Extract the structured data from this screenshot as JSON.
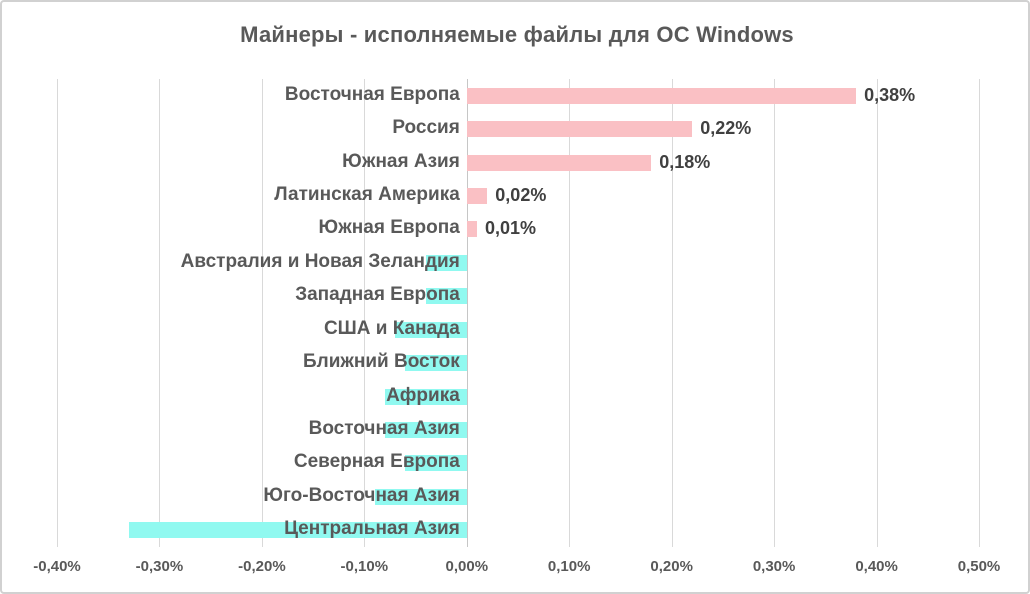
{
  "chart_data": {
    "type": "bar",
    "orientation": "horizontal",
    "title": "Майнеры - исполняемые файлы для ОС Windows",
    "categories": [
      "Восточная Европа",
      "Россия",
      "Южная Азия",
      "Латинская Америка",
      "Южная Европа",
      "Австралия и Новая Зеландия",
      "Западная Европа",
      "США и Канада",
      "Ближний Восток",
      "Африка",
      "Восточная Азия",
      "Северная Европа",
      "Юго-Восточная Азия",
      "Центральная Азия"
    ],
    "values": [
      0.38,
      0.22,
      0.18,
      0.02,
      0.01,
      -0.04,
      -0.04,
      -0.07,
      -0.06,
      -0.08,
      -0.08,
      -0.06,
      -0.09,
      -0.33
    ],
    "data_labels": [
      "0,38%",
      "0,22%",
      "0,18%",
      "0,02%",
      "0,01%",
      "",
      "",
      "",
      "",
      "",
      "",
      "",
      "",
      ""
    ],
    "x_ticks": [
      "-0,40%",
      "-0,30%",
      "-0,20%",
      "-0,10%",
      "0,00%",
      "0,10%",
      "0,20%",
      "0,30%",
      "0,40%",
      "0,50%"
    ],
    "xlim": [
      -0.4,
      0.5
    ],
    "grid": true,
    "legend": "none",
    "colors": {
      "positive_bar": "#fac0c4",
      "negative_bar": "#90f9f0",
      "title_text": "#595959",
      "category_text": "#595959",
      "data_label_text": "#404040",
      "gridline": "#d9d9d9",
      "axis_line": "#c6c6c6",
      "frame_border": "#d1d1d1",
      "background": "#ffffff"
    }
  }
}
